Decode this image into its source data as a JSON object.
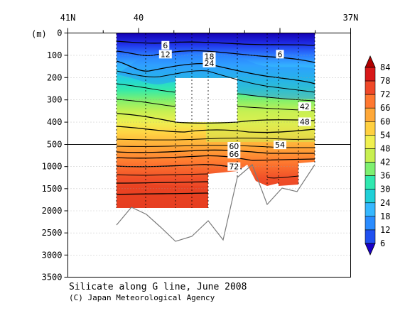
{
  "chart_data": {
    "type": "heatmap",
    "title": "Silicate along G line, June 2008",
    "credit": "(C) Japan Meteorological Agency",
    "ylabel": "(m)",
    "x_axis": {
      "position": "top",
      "ticks": [
        {
          "value": 41,
          "label": "41N"
        },
        {
          "value": 40,
          "label": "40"
        },
        {
          "value": 37,
          "label": "37N"
        }
      ],
      "range": [
        41,
        37
      ]
    },
    "y_axis": {
      "break_at": 500,
      "upper_range": [
        0,
        500
      ],
      "lower_range": [
        500,
        3500
      ],
      "ticks": [
        0,
        100,
        200,
        300,
        400,
        500,
        1000,
        1500,
        2000,
        2500,
        3000,
        3500
      ]
    },
    "colorbar": {
      "levels": [
        6,
        12,
        18,
        24,
        30,
        36,
        42,
        48,
        54,
        60,
        66,
        72,
        78,
        84
      ],
      "colors": [
        "#1a00c8",
        "#2050f0",
        "#2a8cff",
        "#36b8ff",
        "#20d0d8",
        "#30e8b0",
        "#7ef070",
        "#c8f050",
        "#f0f050",
        "#ffd040",
        "#ffa838",
        "#ff7830",
        "#f04828",
        "#d81818",
        "#b00000"
      ]
    },
    "contour_labels": [
      {
        "value": 6,
        "lat": 39.62,
        "depth": 55
      },
      {
        "value": 12,
        "lat": 39.62,
        "depth": 95
      },
      {
        "value": 18,
        "lat": 39.0,
        "depth": 105
      },
      {
        "value": 24,
        "lat": 39.0,
        "depth": 135
      },
      {
        "value": 6,
        "lat": 38.0,
        "depth": 95
      },
      {
        "value": 42,
        "lat": 37.65,
        "depth": 330
      },
      {
        "value": 48,
        "lat": 37.65,
        "depth": 398
      },
      {
        "value": 54,
        "lat": 38.0,
        "depth": 510
      },
      {
        "value": 60,
        "lat": 38.65,
        "depth": 540
      },
      {
        "value": 66,
        "lat": 38.65,
        "depth": 720
      },
      {
        "value": 72,
        "lat": 38.65,
        "depth": 1000
      }
    ]
  }
}
